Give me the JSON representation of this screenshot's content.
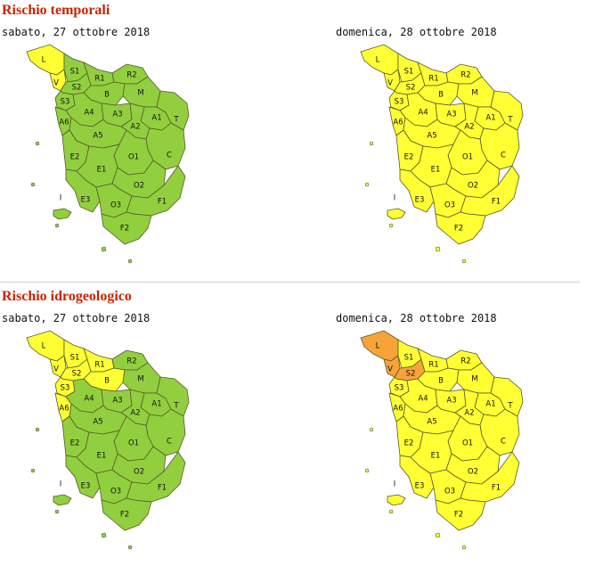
{
  "colors": {
    "green": "#92cf3f",
    "yellow": "#ffff33",
    "orange": "#f7a33a"
  },
  "sections": [
    {
      "title": "Rischio temporali",
      "maps": [
        {
          "date": "sabato, 27 ottobre 2018",
          "zones": {
            "L": "yellow",
            "V": "yellow",
            "S1": "green",
            "S2": "green",
            "S3": "green",
            "A6": "green",
            "R1": "green",
            "R2": "green",
            "B": "green",
            "M": "green",
            "A4": "green",
            "A3": "green",
            "A1": "green",
            "T": "green",
            "A2": "green",
            "A5": "green",
            "C": "green",
            "O1": "green",
            "E2": "green",
            "E1": "green",
            "O2": "green",
            "E3": "green",
            "O3": "green",
            "F1": "green",
            "F2": "green",
            "I": "green"
          }
        },
        {
          "date": "domenica, 28 ottobre 2018",
          "zones": {
            "L": "yellow",
            "V": "yellow",
            "S1": "yellow",
            "S2": "yellow",
            "S3": "yellow",
            "A6": "yellow",
            "R1": "yellow",
            "R2": "yellow",
            "B": "yellow",
            "M": "yellow",
            "A4": "yellow",
            "A3": "yellow",
            "A1": "yellow",
            "T": "yellow",
            "A2": "yellow",
            "A5": "yellow",
            "C": "yellow",
            "O1": "yellow",
            "E2": "yellow",
            "E1": "yellow",
            "O2": "yellow",
            "E3": "yellow",
            "O3": "yellow",
            "F1": "yellow",
            "F2": "yellow",
            "I": "yellow"
          }
        }
      ]
    },
    {
      "title": "Rischio idrogeologico",
      "maps": [
        {
          "date": "sabato, 27 ottobre 2018",
          "zones": {
            "L": "yellow",
            "V": "yellow",
            "S1": "yellow",
            "S2": "yellow",
            "S3": "yellow",
            "A6": "yellow",
            "R1": "yellow",
            "R2": "green",
            "B": "yellow",
            "M": "green",
            "A4": "green",
            "A3": "green",
            "A1": "green",
            "T": "green",
            "A2": "green",
            "A5": "green",
            "C": "green",
            "O1": "green",
            "E2": "green",
            "E1": "green",
            "O2": "green",
            "E3": "green",
            "O3": "green",
            "F1": "green",
            "F2": "green",
            "I": "green"
          }
        },
        {
          "date": "domenica, 28 ottobre 2018",
          "zones": {
            "L": "orange",
            "V": "orange",
            "S1": "yellow",
            "S2": "orange",
            "S3": "yellow",
            "A6": "yellow",
            "R1": "yellow",
            "R2": "yellow",
            "B": "yellow",
            "M": "yellow",
            "A4": "yellow",
            "A3": "yellow",
            "A1": "yellow",
            "T": "yellow",
            "A2": "yellow",
            "A5": "yellow",
            "C": "yellow",
            "O1": "yellow",
            "E2": "yellow",
            "E1": "yellow",
            "O2": "yellow",
            "E3": "yellow",
            "O3": "yellow",
            "F1": "yellow",
            "F2": "yellow",
            "I": "yellow"
          }
        }
      ]
    }
  ]
}
